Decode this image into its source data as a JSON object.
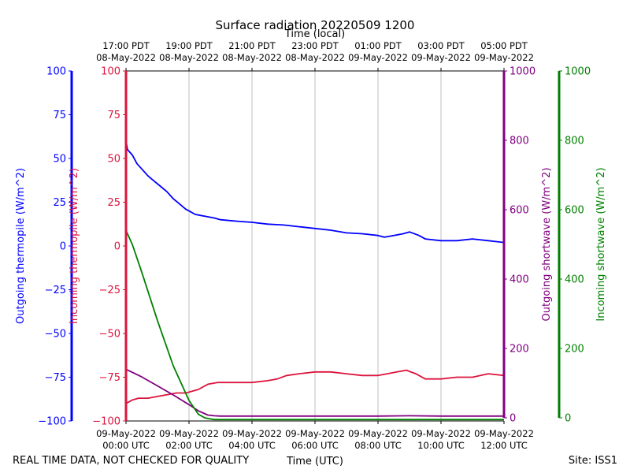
{
  "chart_data": {
    "type": "line",
    "title": "Surface radiation 20220509 1200",
    "top_axis_label": "Time (local)",
    "xlabel": "Time (UTC)",
    "footer_left": "REAL TIME DATA, NOT CHECKED FOR QUALITY",
    "footer_right": "Site: ISS1",
    "x_unit": "hours since 09-May-2022 00:00 UTC",
    "xlim": [
      0,
      12
    ],
    "grid": "vertical",
    "bottom_ticks": [
      {
        "x": 0,
        "line1": "09-May-2022",
        "line2": "00:00 UTC"
      },
      {
        "x": 2,
        "line1": "09-May-2022",
        "line2": "02:00 UTC"
      },
      {
        "x": 4,
        "line1": "09-May-2022",
        "line2": "04:00 UTC"
      },
      {
        "x": 6,
        "line1": "09-May-2022",
        "line2": "06:00 UTC"
      },
      {
        "x": 8,
        "line1": "09-May-2022",
        "line2": "08:00 UTC"
      },
      {
        "x": 10,
        "line1": "09-May-2022",
        "line2": "10:00 UTC"
      },
      {
        "x": 12,
        "line1": "09-May-2022",
        "line2": "12:00 UTC"
      }
    ],
    "top_ticks": [
      {
        "x": 0,
        "line1": "17:00 PDT",
        "line2": "08-May-2022"
      },
      {
        "x": 2,
        "line1": "19:00 PDT",
        "line2": "08-May-2022"
      },
      {
        "x": 4,
        "line1": "21:00 PDT",
        "line2": "08-May-2022"
      },
      {
        "x": 6,
        "line1": "23:00 PDT",
        "line2": "08-May-2022"
      },
      {
        "x": 8,
        "line1": "01:00 PDT",
        "line2": "09-May-2022"
      },
      {
        "x": 10,
        "line1": "03:00 PDT",
        "line2": "09-May-2022"
      },
      {
        "x": 12,
        "line1": "05:00 PDT",
        "line2": "09-May-2022"
      }
    ],
    "axes": [
      {
        "id": "out_therm",
        "label": "Outgoing thermopile (W/m^2)",
        "color": "#0000ff",
        "ylim": [
          -100,
          100
        ],
        "ticks": [
          -100,
          -75,
          -50,
          -25,
          0,
          25,
          50,
          75,
          100
        ]
      },
      {
        "id": "in_therm",
        "label": "Incoming thermopile (W/m^2)",
        "color": "#dc143c",
        "ylim": [
          -100,
          100
        ],
        "ticks": [
          -100,
          -75,
          -50,
          -25,
          0,
          25,
          50,
          75,
          100
        ]
      },
      {
        "id": "out_sw",
        "label": "Outgoing shortwave (W/m^2)",
        "color": "#800080",
        "ylim": [
          0,
          1000
        ],
        "ticks": [
          0,
          200,
          400,
          600,
          800,
          1000
        ]
      },
      {
        "id": "in_sw",
        "label": "Incoming shortwave (W/m^2)",
        "color": "#008000",
        "ylim": [
          0,
          1000
        ],
        "ticks": [
          0,
          200,
          400,
          600,
          800,
          1000
        ]
      }
    ],
    "series": [
      {
        "axis": "out_therm",
        "color": "#0000ff",
        "x": [
          0,
          0.05,
          0.2,
          0.35,
          0.5,
          0.7,
          0.9,
          1.1,
          1.3,
          1.5,
          1.7,
          1.9,
          2.0,
          2.2,
          2.5,
          2.8,
          3.0,
          3.3,
          3.6,
          4.0,
          4.5,
          5.0,
          5.5,
          6.0,
          6.5,
          7.0,
          7.5,
          8.0,
          8.2,
          8.5,
          8.8,
          9.0,
          9.3,
          9.5,
          10.0,
          10.5,
          11.0,
          11.5,
          12.0
        ],
        "y": [
          60,
          55,
          52,
          47,
          44,
          40,
          37,
          34,
          31,
          27,
          24,
          21,
          20,
          18,
          17,
          16,
          15,
          14.5,
          14,
          13.5,
          12.5,
          12,
          11,
          10,
          9,
          7.5,
          7,
          6,
          5,
          6,
          7,
          8,
          6,
          4,
          3,
          3,
          4,
          3,
          2
        ]
      },
      {
        "axis": "in_therm",
        "color": "#dc143c",
        "x": [
          0,
          0.2,
          0.4,
          0.7,
          1.0,
          1.3,
          1.6,
          1.9,
          2.1,
          2.3,
          2.6,
          2.9,
          3.2,
          3.5,
          4.0,
          4.5,
          4.8,
          5.1,
          5.5,
          6.0,
          6.5,
          7.0,
          7.5,
          8.0,
          8.3,
          8.6,
          8.9,
          9.2,
          9.5,
          10.0,
          10.5,
          11.0,
          11.5,
          12.0
        ],
        "y": [
          -90,
          -88,
          -87,
          -87,
          -86,
          -85,
          -84,
          -84,
          -83,
          -82,
          -79,
          -78,
          -78,
          -78,
          -78,
          -77,
          -76,
          -74,
          -73,
          -72,
          -72,
          -73,
          -74,
          -74,
          -73,
          -72,
          -71,
          -73,
          -76,
          -76,
          -75,
          -75,
          -73,
          -74
        ]
      },
      {
        "axis": "out_sw",
        "color": "#800080",
        "x": [
          0,
          0.5,
          1.0,
          1.5,
          2.0,
          2.3,
          2.6,
          2.8,
          3.0,
          4.0,
          6.0,
          8.0,
          9.0,
          10.0,
          12.0
        ],
        "y": [
          140,
          118,
          92,
          66,
          38,
          20,
          8,
          6,
          5,
          5,
          5,
          5,
          6,
          5,
          5
        ]
      },
      {
        "axis": "in_sw",
        "color": "#008000",
        "x": [
          0,
          0.2,
          0.5,
          1.0,
          1.5,
          2.0,
          2.3,
          2.5,
          2.6,
          2.8,
          3.0,
          4.0,
          6.0,
          8.0,
          10.0,
          12.0
        ],
        "y": [
          540,
          500,
          420,
          280,
          150,
          50,
          10,
          0,
          -2,
          -5,
          -5,
          -5,
          -5,
          -5,
          -5,
          -5
        ]
      }
    ]
  }
}
